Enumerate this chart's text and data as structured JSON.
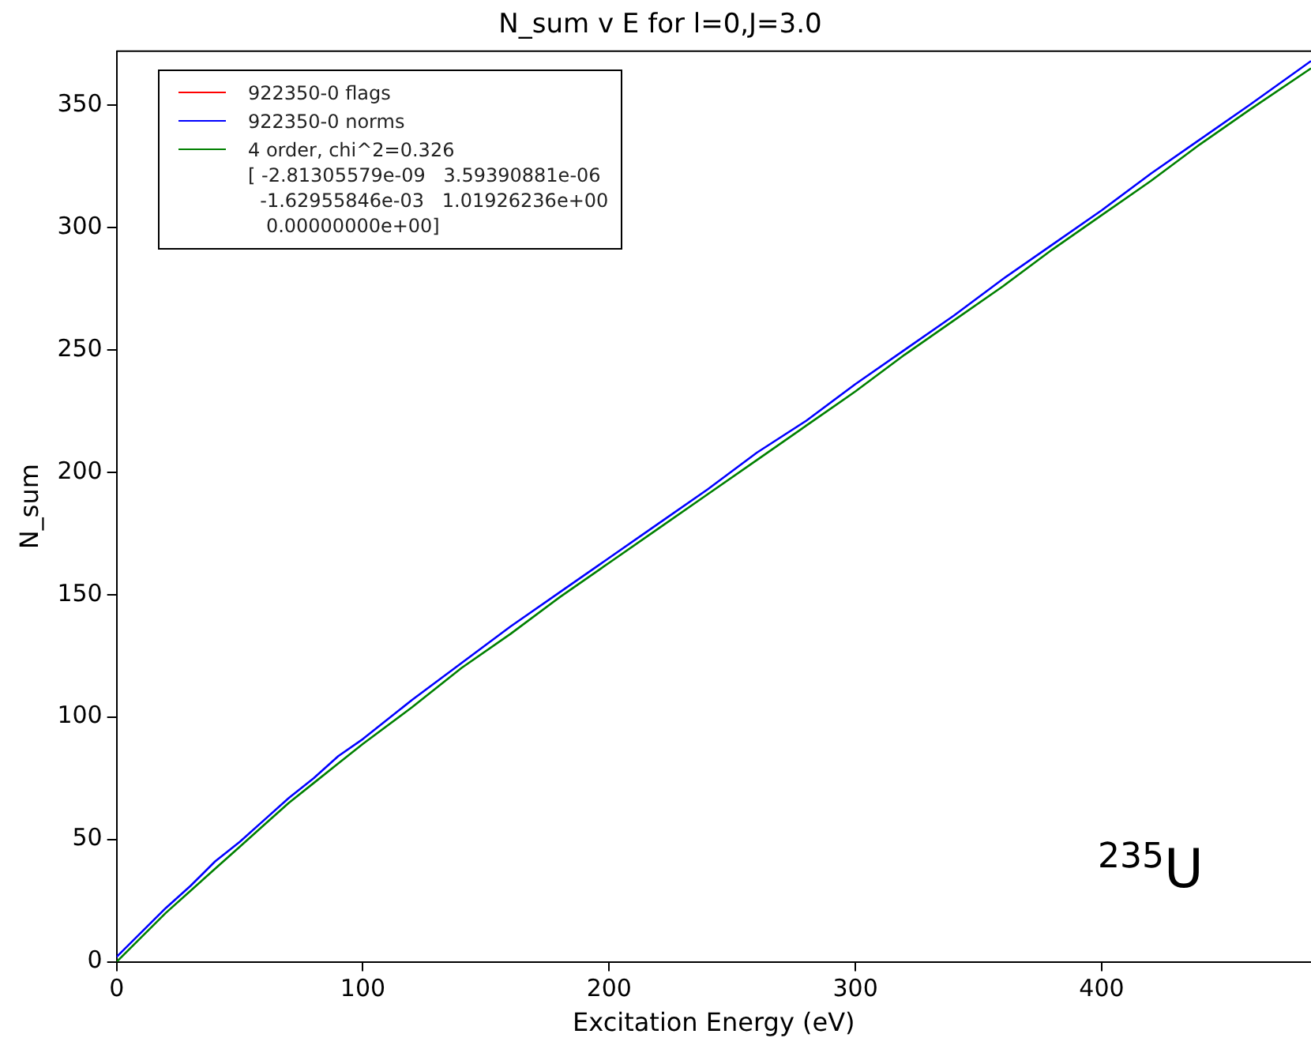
{
  "chart_data": {
    "type": "line",
    "title": "N_sum v E for l=0,J=3.0",
    "xlabel": "Excitation Energy (eV)",
    "ylabel": "N_sum",
    "annotations": [
      "$^{235}$U"
    ],
    "x": [
      0,
      10,
      20,
      30,
      40,
      50,
      60,
      70,
      80,
      90,
      100,
      120,
      140,
      160,
      180,
      200,
      220,
      240,
      260,
      280,
      300,
      320,
      340,
      360,
      380,
      400,
      420,
      440,
      460,
      485
    ],
    "series": [
      {
        "name": "922350-0 flags",
        "color": "#ff0000",
        "values": [
          null,
          null,
          null,
          null,
          null,
          null,
          null,
          null,
          null,
          null,
          null,
          null,
          null,
          null,
          null,
          null,
          null,
          null,
          null,
          null,
          null,
          null,
          null,
          null,
          null,
          null,
          null,
          null,
          null,
          null
        ]
      },
      {
        "name": "922350-0 norms",
        "color": "#0000ff",
        "values": [
          2,
          12,
          22,
          31,
          41,
          49,
          58,
          67,
          75,
          84,
          91,
          107,
          122,
          137,
          151,
          165,
          179,
          193,
          208,
          221,
          236,
          250,
          264,
          279,
          293,
          307,
          322,
          336,
          350,
          368
        ]
      },
      {
        "name": "4 order, chi^2=0.326\n[ -2.81305579e-09   3.59390881e-06\n  -1.62955846e-03   1.01926236e+00\n   0.00000000e+00]",
        "color": "#008000",
        "values": [
          0,
          10,
          20,
          29,
          38,
          47,
          56,
          65,
          73,
          81,
          89,
          104,
          120,
          134,
          149,
          163,
          177,
          191,
          205,
          219,
          233,
          248,
          262,
          276,
          291,
          305,
          319,
          334,
          348,
          365
        ]
      }
    ],
    "xlim": [
      0,
      485
    ],
    "ylim": [
      0,
      372
    ],
    "xticks": [
      0,
      100,
      200,
      300,
      400
    ],
    "yticks": [
      0,
      50,
      100,
      150,
      200,
      250,
      300,
      350
    ],
    "grid": false,
    "legend": "top left",
    "marker": "none",
    "line_style": "solid"
  }
}
